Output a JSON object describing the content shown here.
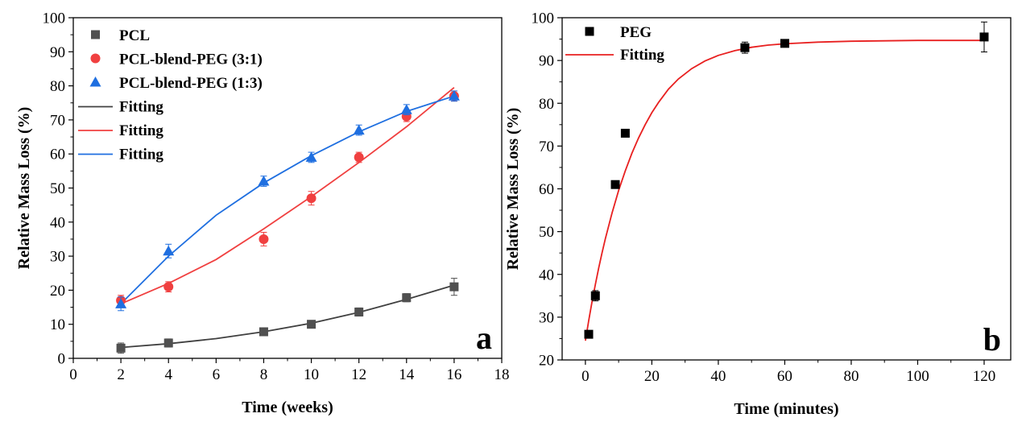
{
  "chart_data": [
    {
      "type": "scatter",
      "panel_label": "a",
      "xlabel": "Time (weeks)",
      "ylabel": "Relative Mass Loss (%)",
      "xlim": [
        0,
        18
      ],
      "ylim": [
        0,
        100
      ],
      "x_ticks": [
        0,
        2,
        4,
        6,
        8,
        10,
        12,
        14,
        16,
        18
      ],
      "y_ticks": [
        0,
        10,
        20,
        30,
        40,
        50,
        60,
        70,
        80,
        90,
        100
      ],
      "grid": false,
      "legend_position": "top-left",
      "series": [
        {
          "name": "PCL",
          "marker": "square",
          "color": "#505050",
          "x": [
            2,
            4,
            8,
            10,
            12,
            14,
            16
          ],
          "y": [
            3,
            4.5,
            7.8,
            10,
            13.6,
            17.8,
            21
          ],
          "err": [
            1.5,
            1.2,
            1.0,
            1.0,
            1.2,
            1.2,
            2.5
          ]
        },
        {
          "name": "PCL-blend-PEG (3:1)",
          "marker": "circle",
          "color": "#f04040",
          "x": [
            2,
            4,
            8,
            10,
            12,
            14,
            16
          ],
          "y": [
            17,
            21,
            35,
            47,
            59,
            71,
            77
          ],
          "err": [
            1.5,
            1.5,
            2.0,
            2.0,
            1.5,
            1.5,
            1.5
          ]
        },
        {
          "name": "PCL-blend-PEG (1:3)",
          "marker": "triangle",
          "color": "#1f6fe0",
          "x": [
            2,
            4,
            8,
            10,
            12,
            14,
            16
          ],
          "y": [
            16,
            31.5,
            52,
            59,
            67,
            73,
            77
          ],
          "err": [
            2.0,
            2.0,
            1.5,
            1.5,
            1.5,
            1.5,
            1.5
          ]
        }
      ],
      "fits": [
        {
          "name": "Fitting",
          "color": "#404040",
          "x": [
            2,
            4,
            6,
            8,
            10,
            12,
            14,
            16
          ],
          "y": [
            3.2,
            4.3,
            5.8,
            7.8,
            10.3,
            13.5,
            17.3,
            21.5
          ]
        },
        {
          "name": "Fitting",
          "color": "#f04040",
          "x": [
            2,
            4,
            6,
            8,
            10,
            12,
            14,
            16
          ],
          "y": [
            16,
            22,
            29,
            38,
            47.5,
            57.5,
            68,
            79.5
          ]
        },
        {
          "name": "Fitting",
          "color": "#1f6fe0",
          "x": [
            2,
            4,
            6,
            8,
            10,
            12,
            14,
            16
          ],
          "y": [
            16,
            30,
            42,
            51.5,
            59.5,
            66.5,
            72.5,
            77
          ]
        }
      ]
    },
    {
      "type": "scatter",
      "panel_label": "b",
      "xlabel": "Time (minutes)",
      "ylabel": "Relative Mass Loss (%)",
      "xlim": [
        -7,
        128
      ],
      "ylim": [
        20,
        100
      ],
      "x_ticks": [
        0,
        20,
        40,
        60,
        80,
        100,
        120
      ],
      "y_ticks": [
        20,
        30,
        40,
        50,
        60,
        70,
        80,
        90,
        100
      ],
      "grid": false,
      "legend_position": "top-left",
      "series": [
        {
          "name": "PEG",
          "marker": "square",
          "color": "#000000",
          "x": [
            1,
            3,
            9,
            12,
            48,
            60,
            120
          ],
          "y": [
            26,
            35,
            61,
            73,
            93,
            94,
            95.5
          ],
          "err": [
            0.8,
            1.2,
            0.8,
            0.8,
            1.3,
            0.6,
            3.5
          ]
        }
      ],
      "fits": [
        {
          "name": "Fitting",
          "color": "#e82020",
          "x": [
            0,
            1,
            2,
            3,
            4,
            5,
            6,
            8,
            10,
            12,
            14,
            16,
            18,
            20,
            22,
            25,
            28,
            32,
            36,
            40,
            45,
            50,
            55,
            60,
            70,
            80,
            90,
            100,
            110,
            120
          ],
          "y": [
            24.5,
            29.2,
            33.6,
            37.7,
            41.5,
            45.0,
            48.3,
            54.3,
            59.6,
            64.2,
            68.3,
            71.9,
            75.0,
            77.8,
            80.2,
            83.3,
            85.7,
            88.1,
            89.9,
            91.2,
            92.3,
            93.1,
            93.6,
            93.9,
            94.3,
            94.5,
            94.6,
            94.7,
            94.7,
            94.7
          ]
        }
      ]
    }
  ]
}
